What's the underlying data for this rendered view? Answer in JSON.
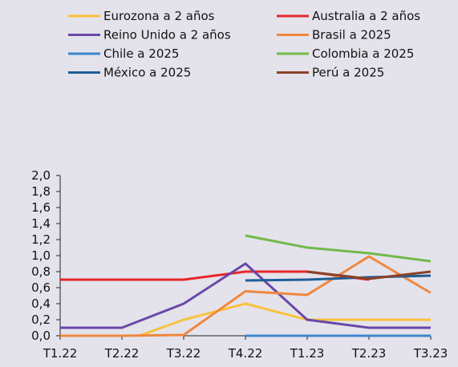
{
  "chart_data": {
    "type": "line",
    "title": "",
    "xlabel": "",
    "ylabel": "",
    "categories": [
      "T1.22",
      "T2.22",
      "T3.22",
      "T4.22",
      "T1.23",
      "T2.23",
      "T3.23"
    ],
    "ylim": [
      0,
      2.0
    ],
    "y_ticks": [
      "0,0",
      "0,2",
      "0,4",
      "0,6",
      "0,8",
      "1,0",
      "1,2",
      "1,4",
      "1,6",
      "1,8",
      "2,0"
    ],
    "grid": false,
    "legend_position": "top",
    "series": [
      {
        "name": "Eurozona a 2 años",
        "color": "#f8c23a",
        "values": [
          null,
          null,
          0.2,
          0.4,
          0.2,
          0.2,
          0.2
        ],
        "zero_ramp": true
      },
      {
        "name": "Australia a 2 años",
        "color": "#e8262b",
        "values": [
          0.7,
          0.7,
          0.7,
          0.8,
          0.8,
          0.7,
          null
        ]
      },
      {
        "name": "Reino Unido a 2 años",
        "color": "#6a48a8",
        "values": [
          0.1,
          0.1,
          0.4,
          0.9,
          0.2,
          0.1,
          0.1
        ]
      },
      {
        "name": "Brasil a 2025",
        "color": "#f0873e",
        "values": [
          0.0,
          0.0,
          0.01,
          0.555,
          0.51,
          0.99,
          0.535
        ]
      },
      {
        "name": "Chile a 2025",
        "color": "#3d86cf",
        "values": [
          null,
          null,
          null,
          0.0,
          0.0,
          0.0,
          0.0
        ]
      },
      {
        "name": "Colombia a 2025",
        "color": "#72b94a",
        "values": [
          null,
          null,
          null,
          1.25,
          1.1,
          1.03,
          0.93
        ]
      },
      {
        "name": "México a 2025",
        "color": "#1f5d96",
        "values": [
          null,
          null,
          null,
          0.69,
          0.7,
          0.73,
          0.75
        ]
      },
      {
        "name": "Perú a 2025",
        "color": "#8a4226",
        "values": [
          null,
          null,
          null,
          null,
          0.8,
          0.71,
          0.8
        ]
      }
    ]
  }
}
